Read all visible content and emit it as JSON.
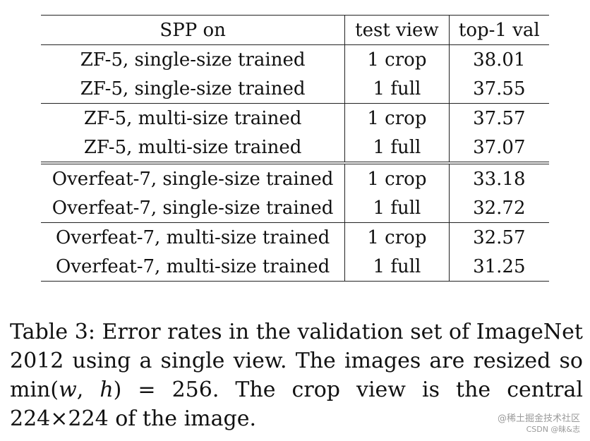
{
  "table": {
    "headers": [
      "SPP on",
      "test view",
      "top-1 val"
    ],
    "rows": [
      {
        "model": "ZF-5, single-size trained",
        "view": "1 crop",
        "value": "38.01"
      },
      {
        "model": "ZF-5, single-size trained",
        "view": "1 full",
        "value": "37.55"
      },
      {
        "model": "ZF-5, multi-size trained",
        "view": "1 crop",
        "value": "37.57"
      },
      {
        "model": "ZF-5, multi-size trained",
        "view": "1 full",
        "value": "37.07"
      },
      {
        "model": "Overfeat-7, single-size trained",
        "view": "1 crop",
        "value": "33.18"
      },
      {
        "model": "Overfeat-7, single-size trained",
        "view": "1 full",
        "value": "32.72"
      },
      {
        "model": "Overfeat-7, multi-size trained",
        "view": "1 crop",
        "value": "32.57"
      },
      {
        "model": "Overfeat-7, multi-size trained",
        "view": "1 full",
        "value": "31.25"
      }
    ]
  },
  "caption": {
    "label": "Table 3:",
    "text_before": "Error rates in the validation set of ImageNet 2012 using a single view. The images are resized so",
    "math_fn": "min(",
    "math_w": "w",
    "math_sep": ", ",
    "math_h": "h",
    "math_rest": ") = 256",
    "text_after": ". The crop view is the central 224×224 of the image."
  },
  "watermark": {
    "line1": "@稀土掘金技术社区",
    "line2": "CSDN @昧&志"
  }
}
